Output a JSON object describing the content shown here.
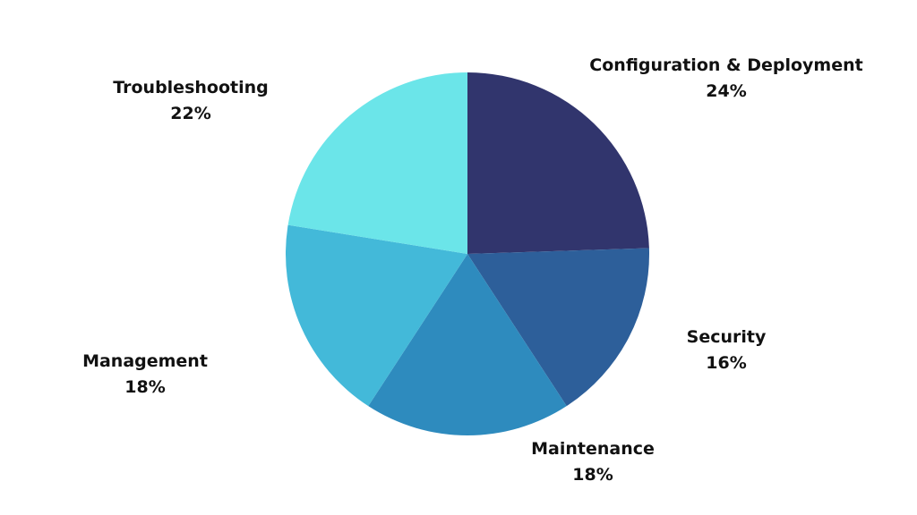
{
  "chart_data": {
    "type": "pie",
    "slices": [
      {
        "label": "Configuration & Deployment",
        "value": 24,
        "value_label": "24%",
        "color": "#31356d"
      },
      {
        "label": "Security",
        "value": 16,
        "value_label": "16%",
        "color": "#2d5f9a"
      },
      {
        "label": "Maintenance",
        "value": 18,
        "value_label": "18%",
        "color": "#2e8bbe"
      },
      {
        "label": "Management",
        "value": 18,
        "value_label": "18%",
        "color": "#43b9d9"
      },
      {
        "label": "Troubleshooting",
        "value": 22,
        "value_label": "22%",
        "color": "#6be5e9"
      }
    ],
    "start_angle": "12 o'clock",
    "direction": "clockwise",
    "legend": "none"
  }
}
